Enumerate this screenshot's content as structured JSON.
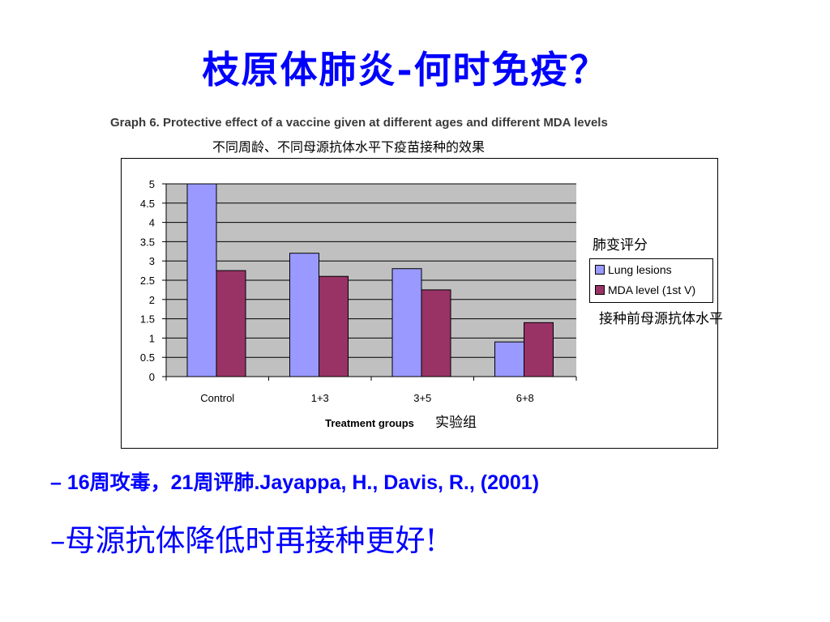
{
  "slide": {
    "title": "枝原体肺炎-何时免疫？",
    "bullets": [
      "– 16周攻毒，21周评肺.Jayappa, H., Davis, R., (2001)",
      "–母源抗体降低时再接种更好!"
    ]
  },
  "figure": {
    "caption": "Graph 6. Protective effect of a vaccine given at different ages and different MDA levels",
    "caption_cn": "不同周龄、不同母源抗体水平下疫苗接种的效果",
    "legend_note_top": "肺变评分",
    "legend_note_bottom": "接种前母源抗体水平",
    "xlabel_cn": "实验组"
  },
  "chart_data": {
    "type": "bar",
    "categories": [
      "Control",
      "1+3",
      "3+5",
      "6+8"
    ],
    "series": [
      {
        "name": "Lung lesions",
        "values": [
          5,
          3.2,
          2.8,
          0.9
        ],
        "color": "#9999ff"
      },
      {
        "name": "MDA level (1st V)",
        "values": [
          2.75,
          2.6,
          2.25,
          1.4
        ],
        "color": "#993366"
      }
    ],
    "title": "",
    "xlabel": "Treatment groups",
    "ylabel": "",
    "ylim": [
      0,
      5
    ],
    "yticks": [
      "0",
      "0.5",
      "1",
      "1.5",
      "2",
      "2.5",
      "3",
      "3.5",
      "4",
      "4.5",
      "5"
    ],
    "plot_background": "#c0c0c0",
    "grid": true,
    "legend_position": "right"
  }
}
